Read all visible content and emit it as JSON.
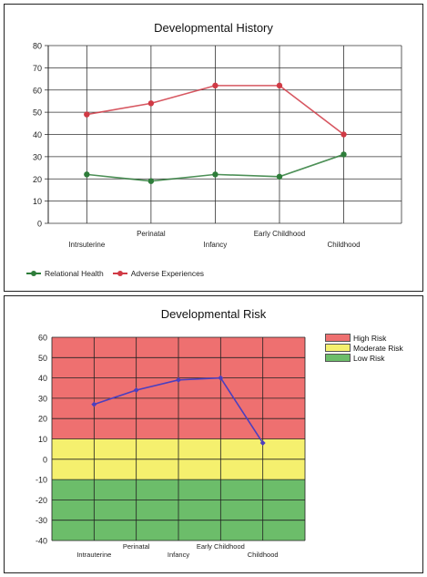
{
  "chart_data": [
    {
      "type": "line",
      "title": "Developmental History",
      "categories": [
        "Intrsuterine",
        "Perinatal",
        "Infancy",
        "Early Childhood",
        "Childhood"
      ],
      "ylim": [
        0,
        80
      ],
      "yticks": [
        0,
        10,
        20,
        30,
        40,
        50,
        60,
        70,
        80
      ],
      "grid": true,
      "legend_position": "bottom-left",
      "series": [
        {
          "name": "Relational Health",
          "color": "#2e7d3a",
          "values": [
            22,
            19,
            22,
            21,
            31
          ]
        },
        {
          "name": "Adverse Experiences",
          "color": "#d03a45",
          "values": [
            49,
            54,
            62,
            62,
            40
          ]
        }
      ]
    },
    {
      "type": "line",
      "title": "Developmental Risk",
      "categories": [
        "Intrauterine",
        "Perinatal",
        "Infancy",
        "Early Childhood",
        "Childhood"
      ],
      "ylim": [
        -40,
        60
      ],
      "yticks": [
        -40,
        -30,
        -20,
        -10,
        0,
        10,
        20,
        30,
        40,
        50,
        60
      ],
      "grid": true,
      "legend_position": "top-right",
      "bands": [
        {
          "name": "High Risk",
          "from": 10,
          "to": 60,
          "color": "#ee7070"
        },
        {
          "name": "Moderate Risk",
          "from": -10,
          "to": 10,
          "color": "#f5f06e"
        },
        {
          "name": "Low Risk",
          "from": -40,
          "to": -10,
          "color": "#6cbd6a"
        }
      ],
      "series": [
        {
          "name": "",
          "color": "#4b3fbf",
          "values": [
            27,
            34,
            39,
            40,
            8
          ]
        }
      ]
    }
  ]
}
